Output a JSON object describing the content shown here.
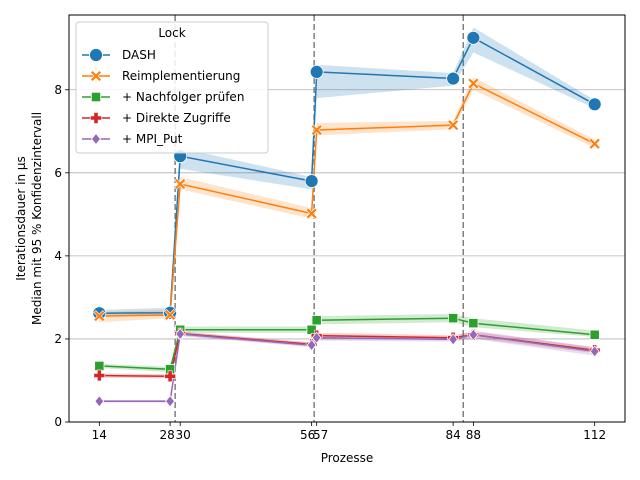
{
  "chart_data": {
    "type": "line",
    "xlabel": "Prozesse",
    "ylabel_lines": [
      "Median mit 95 % Konfidenzintervall",
      "Iterationsdauer in µs"
    ],
    "xlim": [
      8,
      118
    ],
    "ylim": [
      0,
      9.8
    ],
    "x_ticks": [
      14,
      28,
      30,
      56,
      57,
      84,
      88,
      112
    ],
    "x_tick_labels": [
      "14",
      "28",
      "30",
      "56",
      "57",
      "84",
      "88",
      "112"
    ],
    "y_ticks": [
      0,
      2,
      4,
      6,
      8
    ],
    "y_tick_labels": [
      "0",
      "2",
      "4",
      "6",
      "8"
    ],
    "grid": "y",
    "vlines": [
      29,
      56.5,
      86
    ],
    "legend": {
      "title": "Lock",
      "placement": "top-left"
    },
    "series": [
      {
        "name": "DASH",
        "color": "#1f77b4",
        "marker": "circle",
        "x": [
          14,
          28,
          30,
          56,
          57,
          84,
          88,
          112
        ],
        "y": [
          2.62,
          2.63,
          6.4,
          5.8,
          8.43,
          8.27,
          9.25,
          7.65
        ],
        "ci_low": [
          2.55,
          2.55,
          6.1,
          5.6,
          7.8,
          8.1,
          8.9,
          7.55
        ],
        "ci_high": [
          2.7,
          2.75,
          6.6,
          5.9,
          8.6,
          8.4,
          9.5,
          7.75
        ]
      },
      {
        "name": "Reimplementierung",
        "color": "#ff7f0e",
        "marker": "x",
        "x": [
          14,
          28,
          30,
          56,
          57,
          84,
          88,
          112
        ],
        "y": [
          2.55,
          2.58,
          5.73,
          5.02,
          7.03,
          7.15,
          8.15,
          6.7
        ],
        "ci_low": [
          2.4,
          2.5,
          5.6,
          4.9,
          6.9,
          7.05,
          8.0,
          6.6
        ],
        "ci_high": [
          2.65,
          2.7,
          5.9,
          5.15,
          7.2,
          7.25,
          8.3,
          6.8
        ]
      },
      {
        "name": "+ Nachfolger prüfen",
        "color": "#2ca02c",
        "marker": "square",
        "x": [
          14,
          28,
          30,
          56,
          57,
          84,
          88,
          112
        ],
        "y": [
          1.35,
          1.27,
          2.22,
          2.22,
          2.45,
          2.5,
          2.38,
          2.1
        ],
        "ci_low": [
          1.3,
          1.2,
          2.15,
          2.15,
          2.35,
          2.4,
          2.28,
          2.05
        ],
        "ci_high": [
          1.4,
          1.33,
          2.3,
          2.3,
          2.55,
          2.6,
          2.5,
          2.2
        ]
      },
      {
        "name": "+ Direkte Zugriffe",
        "color": "#d62728",
        "marker": "plus",
        "x": [
          14,
          28,
          30,
          56,
          57,
          84,
          88,
          112
        ],
        "y": [
          1.12,
          1.1,
          2.13,
          1.87,
          2.08,
          2.03,
          2.1,
          1.73
        ],
        "ci_low": [
          1.07,
          1.05,
          2.08,
          1.82,
          2.02,
          1.97,
          2.02,
          1.66
        ],
        "ci_high": [
          1.17,
          1.15,
          2.18,
          1.92,
          2.15,
          2.09,
          2.18,
          1.8
        ]
      },
      {
        "name": "+ MPI_Put",
        "color": "#9467bd",
        "marker": "diamond",
        "x": [
          14,
          28,
          30,
          56,
          57,
          84,
          88,
          112
        ],
        "y": [
          0.5,
          0.5,
          2.12,
          1.85,
          2.03,
          1.99,
          2.1,
          1.7
        ],
        "ci_low": [
          0.47,
          0.47,
          2.07,
          1.8,
          1.96,
          1.93,
          2.0,
          1.6
        ],
        "ci_high": [
          0.53,
          0.53,
          2.17,
          1.9,
          2.1,
          2.05,
          2.2,
          1.8
        ]
      }
    ]
  }
}
